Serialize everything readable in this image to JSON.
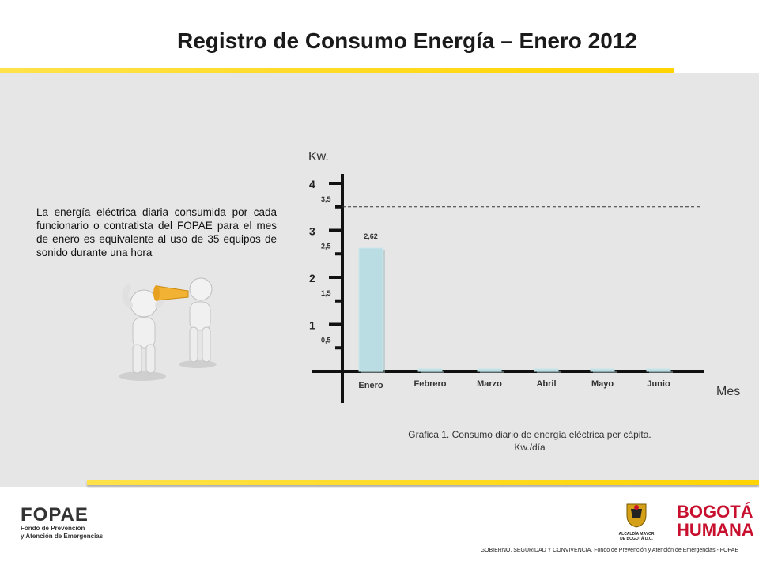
{
  "title": "Registro de Consumo Energía – Enero 2012",
  "description": "La energía eléctrica diaria consumida por cada funcionario o contratista del FOPAE para el mes de enero es equivalente al uso de 35 equipos de sonido durante una hora",
  "chart_caption": {
    "line1": "Grafica 1. Consumo diario de energía eléctrica per cápita.",
    "line2": "Kw./día"
  },
  "chart_data": {
    "type": "bar",
    "title": "",
    "ylabel": "Kw.",
    "xlabel": "Mes",
    "categories": [
      "Enero",
      "Febrero",
      "Marzo",
      "Abril",
      "Mayo",
      "Junio"
    ],
    "values": [
      2.62,
      0,
      0,
      0,
      0,
      0
    ],
    "data_labels": [
      "2,62",
      "",
      "",
      "",
      "",
      ""
    ],
    "ylim": [
      0,
      4
    ],
    "major_ticks": [
      "1",
      "2",
      "3",
      "4"
    ],
    "minor_ticks": [
      "0,5",
      "1,5",
      "2,5",
      "3,5"
    ],
    "reference_line": 3.5,
    "bar_color": "#b9dde2",
    "grid": false
  },
  "footer": {
    "left_logo_big": "FOPAE",
    "left_logo_line1": "Fondo de Prevención",
    "left_logo_line2": "y Atención de Emergencias",
    "alcaldia_line1": "ALCALDÍA MAYOR",
    "alcaldia_line2": "DE BOGOTÁ D.C.",
    "bogota_line1": "BOGOTÁ",
    "bogota_line2": "HUMANA",
    "credit": "GOBIERNO, SEGURIDAD Y CONVIVENCIA, Fondo de Prevención y Atención de Emergencias - FOPAE"
  },
  "colors": {
    "accent": "#ffd400",
    "panel": "#e6e6e6",
    "brand_red": "#c8102e"
  }
}
